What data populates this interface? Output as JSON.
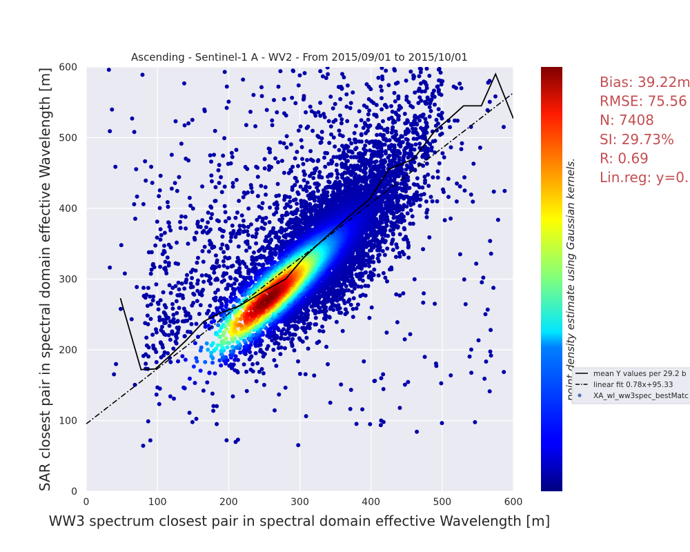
{
  "chart_data": {
    "type": "scatter",
    "title": "Ascending - Sentinel-1 A - WV2 - From 2015/09/01 to 2015/10/01",
    "xlabel": "WW3 spectrum closest pair in spectral domain effective Wavelength [m]",
    "ylabel": "SAR closest pair in spectral domain effective Wavelength [m]",
    "xlim": [
      0,
      600
    ],
    "ylim": [
      0,
      600
    ],
    "x_ticks": [
      "0",
      "100",
      "200",
      "300",
      "400",
      "500",
      "600"
    ],
    "y_ticks": [
      "0",
      "100",
      "200",
      "300",
      "400",
      "500",
      "600"
    ],
    "grid": true,
    "colormap": "jet",
    "colorbar_label": "point density estimate using Gaussian kernels.",
    "legend": {
      "placement": "right",
      "entries": [
        {
          "label": "mean Y values per 29.2 b",
          "style": "solid-line",
          "color": "#000000"
        },
        {
          "label": "linear fit 0.78x+95.33",
          "style": "dash-dot-line",
          "color": "#000000"
        },
        {
          "label": "XA_wl_ww3spec_bestMatc",
          "style": "marker",
          "color": "#4c72b0"
        }
      ]
    },
    "linear_fit": {
      "slope": 0.78,
      "intercept": 95.33
    },
    "mean_y_per_bin": {
      "x": [
        48,
        77,
        97,
        118,
        140,
        165,
        188,
        215,
        248,
        280,
        305,
        335,
        365,
        398,
        425,
        460,
        490,
        508,
        530,
        555,
        575,
        600
      ],
      "y": [
        273,
        172,
        173,
        192,
        213,
        240,
        252,
        262,
        282,
        300,
        330,
        358,
        385,
        413,
        455,
        470,
        510,
        525,
        545,
        545,
        590,
        527
      ]
    },
    "scatter_summary": {
      "n_points": 7408,
      "density_core": {
        "x": 255,
        "y": 270
      },
      "correlation": 0.69
    },
    "stats_text": [
      "Bias: 39.22m",
      "RMSE: 75.56",
      "N: 7408",
      "SI: 29.73%",
      "R: 0.69",
      "Lin.reg: y=0."
    ]
  }
}
